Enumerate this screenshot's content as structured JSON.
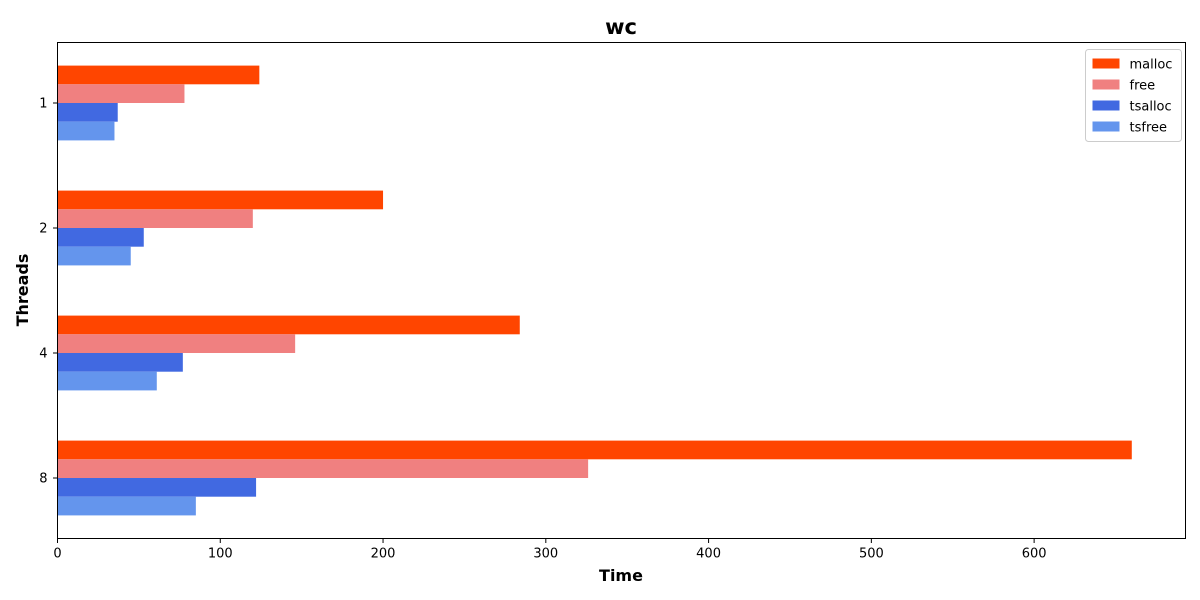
{
  "chart_data": {
    "type": "bar",
    "orientation": "horizontal",
    "title": "wc",
    "xlabel": "Time",
    "ylabel": "Threads",
    "categories": [
      "1",
      "2",
      "4",
      "8"
    ],
    "series": [
      {
        "name": "malloc",
        "color": "#ff4500",
        "values": [
          124,
          200,
          284,
          660
        ]
      },
      {
        "name": "free",
        "color": "#f08080",
        "values": [
          78,
          120,
          146,
          326
        ]
      },
      {
        "name": "tsalloc",
        "color": "#4169e1",
        "values": [
          37,
          53,
          77,
          122
        ]
      },
      {
        "name": "tsfree",
        "color": "#6495ed",
        "values": [
          35,
          45,
          61,
          85
        ]
      }
    ],
    "xlim": [
      0,
      693
    ],
    "xticks": [
      0,
      100,
      200,
      300,
      400,
      500,
      600
    ],
    "grid": false,
    "legend_position": "top-right"
  }
}
